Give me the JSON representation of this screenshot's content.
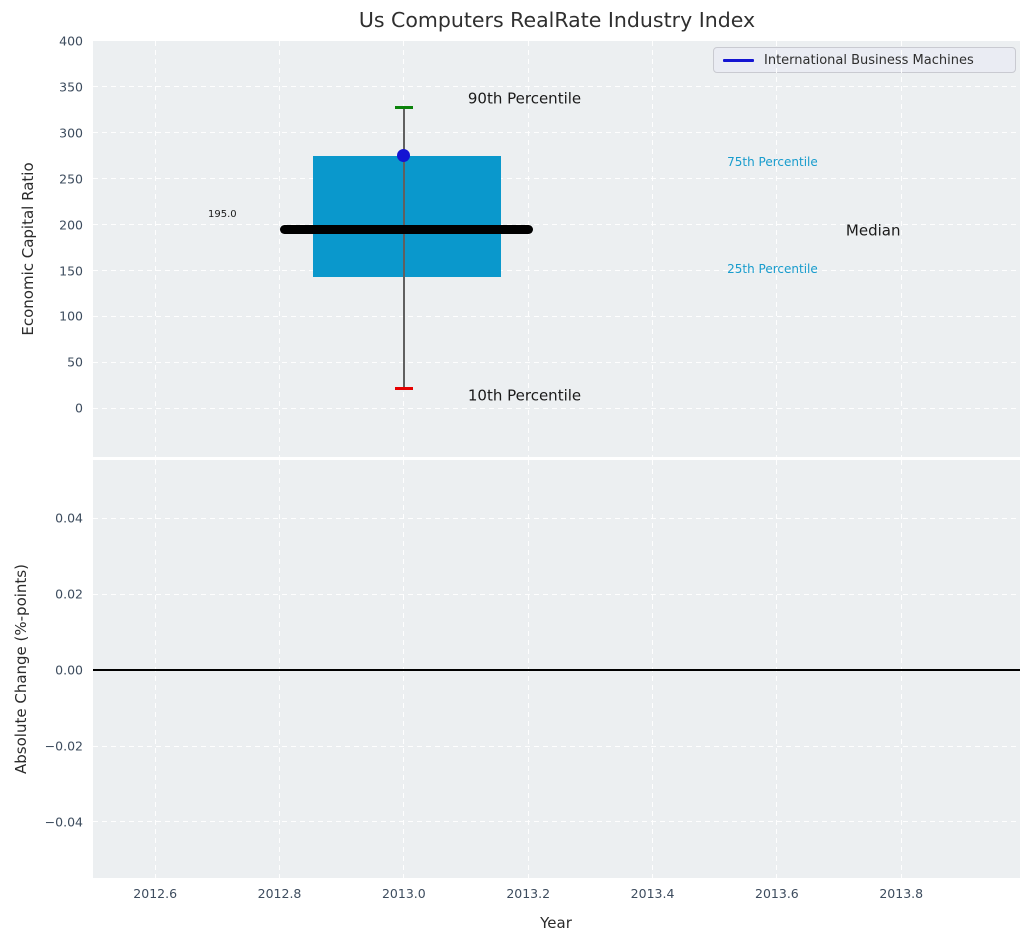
{
  "chart_data": {
    "type": "boxplot",
    "title": "Us Computers RealRate Industry Index",
    "xlabel": "Year",
    "xlim": [
      2012.5,
      2013.991
    ],
    "xticks": [
      {
        "v": 2012.6,
        "label": "2012.6"
      },
      {
        "v": 2012.8,
        "label": "2012.8"
      },
      {
        "v": 2013.0,
        "label": "2013.0"
      },
      {
        "v": 2013.2,
        "label": "2013.2"
      },
      {
        "v": 2013.4,
        "label": "2013.4"
      },
      {
        "v": 2013.6,
        "label": "2013.6"
      },
      {
        "v": 2013.8,
        "label": "2013.8"
      }
    ],
    "grid": {
      "style": "dashed",
      "color": "#ffffff"
    },
    "plot_background": "#eceff1",
    "legend": {
      "label": "International Business Machines",
      "line_color": "#1414d2",
      "position": "upper right"
    },
    "top_panel": {
      "ylabel": "Economic Capital Ratio",
      "ylim": [
        -53,
        400
      ],
      "yticks": [
        {
          "v": 400,
          "label": "400"
        },
        {
          "v": 350,
          "label": "350"
        },
        {
          "v": 300,
          "label": "300"
        },
        {
          "v": 250,
          "label": "250"
        },
        {
          "v": 200,
          "label": "200"
        },
        {
          "v": 150,
          "label": "150"
        },
        {
          "v": 100,
          "label": "100"
        },
        {
          "v": 50,
          "label": "50"
        },
        {
          "v": 0,
          "label": "0"
        }
      ],
      "boxplot": {
        "x": 2013.0,
        "p10": 22,
        "p25": 143,
        "median": 195,
        "p75": 275,
        "p90": 328,
        "box_x": [
          2012.854,
          2013.156
        ],
        "median_x": [
          2012.801,
          2013.208
        ],
        "cap_half_width": 0.0145,
        "box_color": "#0a98cc",
        "median_color": "#000000",
        "whisker_color": "#606060",
        "cap_top_color": "#0b830b",
        "cap_bottom_color": "#e60000"
      },
      "point": {
        "x": 2013.0,
        "v": 275,
        "color": "#1414d2",
        "series": "International Business Machines"
      },
      "annotations": [
        {
          "name": "p90-annotation",
          "text": "90th Percentile",
          "x": 2013.103,
          "v": 337,
          "color": "#1a1a1a",
          "size": 15
        },
        {
          "name": "p10-annotation",
          "text": "10th Percentile",
          "x": 2013.103,
          "v": 13,
          "color": "#1a1a1a",
          "size": 15
        },
        {
          "name": "median-annotation",
          "text": "Median",
          "x": 2013.711,
          "v": 193,
          "color": "#1a1a1a",
          "size": 15
        },
        {
          "name": "p75-annotation",
          "text": "75th Percentile",
          "x": 2013.52,
          "v": 268,
          "color": "#189ccd",
          "size": 12
        },
        {
          "name": "p25-annotation",
          "text": "25th Percentile",
          "x": 2013.52,
          "v": 152,
          "color": "#189ccd",
          "size": 12
        },
        {
          "name": "median-value-annotation",
          "text": "195.0",
          "x": 2012.685,
          "v": 210,
          "color": "#1a1a1a",
          "size": 10
        }
      ]
    },
    "bottom_panel": {
      "ylabel": "Absolute Change (%-points)",
      "ylim": [
        -0.0548,
        0.0554
      ],
      "yticks": [
        {
          "v": 0.04,
          "label": "0.04"
        },
        {
          "v": 0.02,
          "label": "0.02"
        },
        {
          "v": 0.0,
          "label": "0.00"
        },
        {
          "v": -0.02,
          "label": "−0.02"
        },
        {
          "v": -0.04,
          "label": "−0.04"
        }
      ],
      "zero_line": {
        "v": 0.0,
        "color": "#000000"
      }
    }
  }
}
